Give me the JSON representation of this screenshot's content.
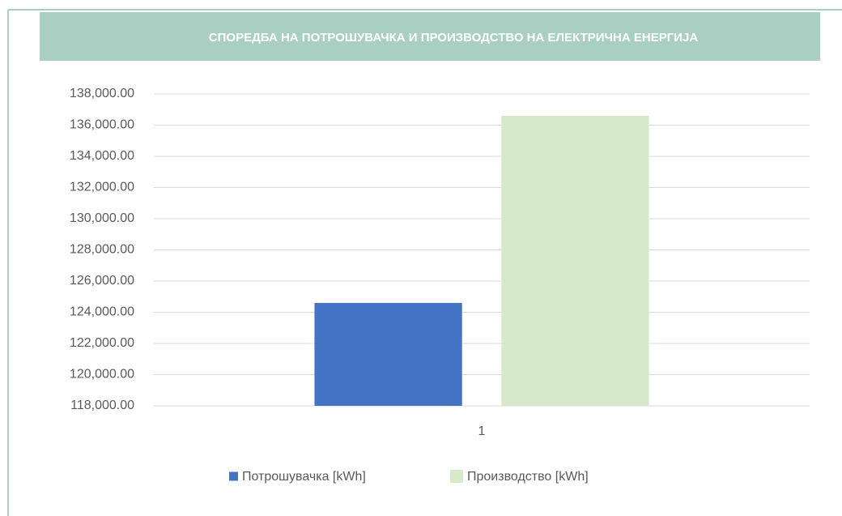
{
  "chart_data": {
    "type": "bar",
    "title": "СПОРЕДБА НА ПОТРОШУВАЧКА И ПРОИЗВОДСТВО НА ЕЛЕКТРИЧНА ЕНЕРГИЈА",
    "categories": [
      "1"
    ],
    "series": [
      {
        "name": "Потрошувачка [kWh]",
        "color": "#4472c4",
        "values": [
          124600
        ]
      },
      {
        "name": "Производство [kWh]",
        "color": "#d6e9c8",
        "values": [
          136600
        ]
      }
    ],
    "ylim": [
      118000,
      138000
    ],
    "yticks": [
      {
        "value": 118000,
        "label": "118,000.00"
      },
      {
        "value": 120000,
        "label": "120,000.00"
      },
      {
        "value": 122000,
        "label": "122,000.00"
      },
      {
        "value": 124000,
        "label": "124,000.00"
      },
      {
        "value": 126000,
        "label": "126,000.00"
      },
      {
        "value": 128000,
        "label": "128,000.00"
      },
      {
        "value": 130000,
        "label": "130,000.00"
      },
      {
        "value": 132000,
        "label": "132,000.00"
      },
      {
        "value": 134000,
        "label": "134,000.00"
      },
      {
        "value": 136000,
        "label": "136,000.00"
      },
      {
        "value": 138000,
        "label": "138,000.00"
      }
    ],
    "grid": true,
    "legend": "bottom"
  }
}
